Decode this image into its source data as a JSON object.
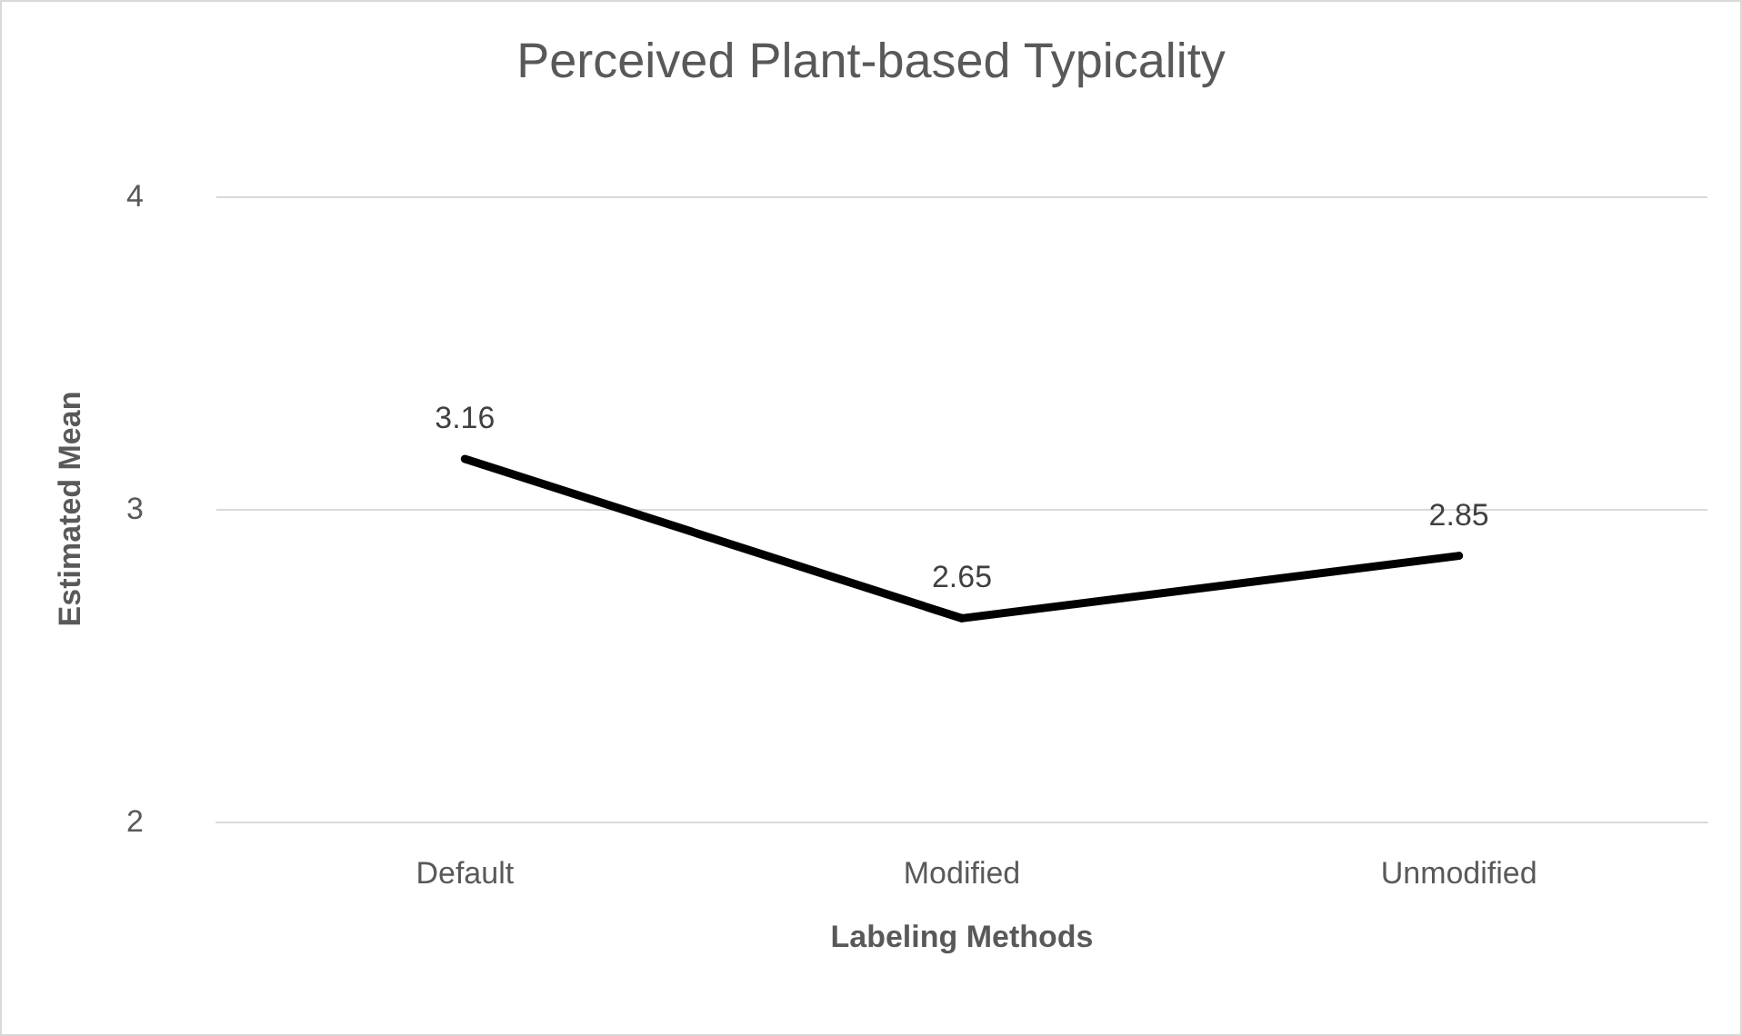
{
  "chart_data": {
    "type": "line",
    "title": "Perceived Plant-based Typicality",
    "xlabel": "Labeling Methods",
    "ylabel": "Estimated Mean",
    "categories": [
      "Default",
      "Modified",
      "Unmodified"
    ],
    "series": [
      {
        "color": "#000000",
        "values": [
          3.16,
          2.65,
          2.85
        ]
      }
    ],
    "ylim": [
      2,
      4
    ],
    "yticks": [
      2,
      3,
      4
    ],
    "grid": "y",
    "data_labels": true,
    "marker": "none",
    "line_style": "solid"
  }
}
